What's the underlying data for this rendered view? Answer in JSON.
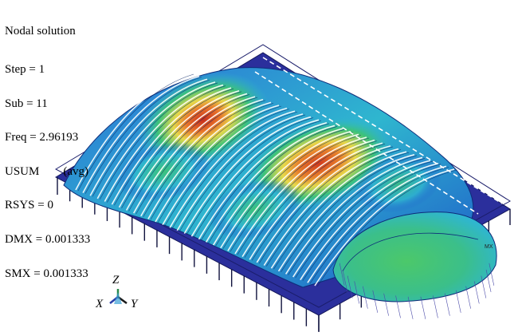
{
  "legend": {
    "title": "Nodal solution",
    "lines": [
      "Step = 1",
      "Sub = 11",
      "Freq = 2.96193",
      "USUM        (avg)",
      "RSYS = 0",
      "DMX = 0.001333",
      "SMX = 0.001333"
    ]
  },
  "triad": {
    "z": "Z",
    "x": "X",
    "y": "Y"
  },
  "marker": "MX",
  "colors": {
    "deck_blue": "#2b2f9c",
    "low": "#1f4fd0",
    "cyan": "#2fb6cf",
    "green": "#3cc27a",
    "yellow": "#e6d84a",
    "orange": "#e8742a",
    "red": "#c62c1c"
  }
}
